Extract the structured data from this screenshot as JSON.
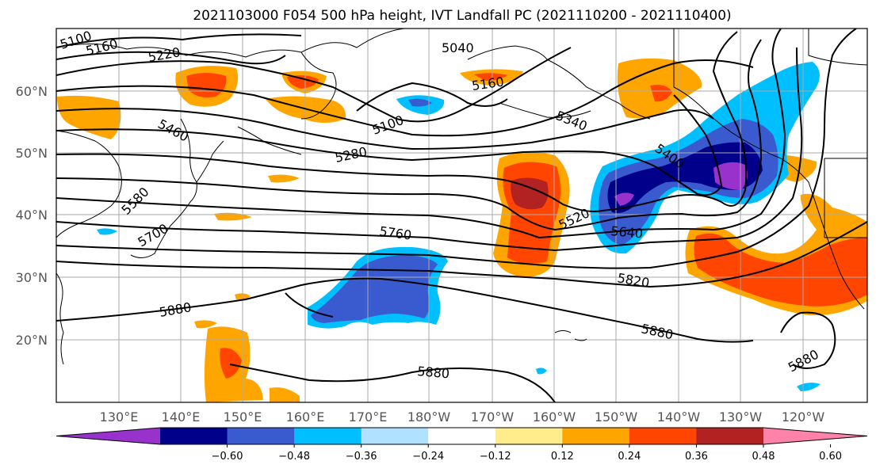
{
  "title": "2021103000 F054 500 hPa height, IVT Landfall PC (2021110200 - 2021110400)",
  "lat_labels": [
    "60°N",
    "50°N",
    "40°N",
    "30°N",
    "20°N"
  ],
  "lon_labels": [
    "130°E",
    "140°E",
    "150°E",
    "160°E",
    "170°E",
    "180°W",
    "170°W",
    "160°W",
    "150°W",
    "140°W",
    "130°W",
    "120°W"
  ],
  "colorbar": {
    "colors": [
      "#9932cc",
      "#00008b",
      "#3a5bcf",
      "#00bfff",
      "#b0e2ff",
      "#ffffff",
      "#ffec8b",
      "#ffa500",
      "#ff4500",
      "#b22222",
      "#ff82ab"
    ],
    "ticks": [
      "−0.60",
      "−0.48",
      "−0.36",
      "−0.24",
      "−0.12",
      "0.12",
      "0.24",
      "0.36",
      "0.48",
      "0.60"
    ]
  },
  "contour_labels": [
    "5100",
    "5160",
    "5220",
    "5040",
    "5160",
    "5100",
    "5340",
    "5460",
    "5280",
    "5580",
    "5400",
    "5520",
    "5640",
    "5700",
    "5760",
    "5820",
    "5880",
    "5880",
    "5880",
    "5880"
  ]
}
